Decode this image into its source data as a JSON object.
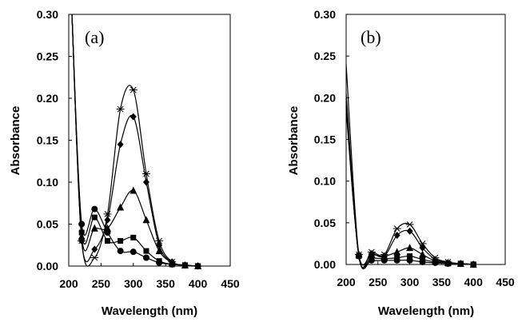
{
  "chart_data": [
    {
      "type": "line",
      "panel_label": "(a)",
      "xlabel": "Wavelength (nm)",
      "ylabel": "Absorbance",
      "xlim": [
        200,
        450
      ],
      "ylim": [
        0,
        0.3
      ],
      "xticks": [
        "200",
        "250",
        "300",
        "350",
        "400",
        "450"
      ],
      "yticks": [
        "0.00",
        "0.05",
        "0.10",
        "0.15",
        "0.20",
        "0.25",
        "0.30"
      ],
      "grid": false,
      "series": [
        {
          "marker": "circle",
          "x": [
            205,
            220,
            240,
            260,
            280,
            300,
            320,
            340,
            360,
            380,
            400
          ],
          "y": [
            0.3,
            0.05,
            0.068,
            0.04,
            0.018,
            0.017,
            0.01,
            0.004,
            0.002,
            0.001,
            0.0
          ]
        },
        {
          "marker": "square",
          "x": [
            205,
            220,
            240,
            260,
            280,
            300,
            320,
            340,
            360,
            380,
            400
          ],
          "y": [
            0.3,
            0.04,
            0.058,
            0.03,
            0.03,
            0.034,
            0.018,
            0.006,
            0.002,
            0.001,
            0.0
          ]
        },
        {
          "marker": "triangle",
          "x": [
            205,
            220,
            240,
            260,
            280,
            300,
            320,
            340,
            360,
            380,
            400
          ],
          "y": [
            0.3,
            0.035,
            0.045,
            0.045,
            0.07,
            0.09,
            0.055,
            0.018,
            0.004,
            0.001,
            0.0
          ]
        },
        {
          "marker": "diamond",
          "x": [
            205,
            220,
            240,
            260,
            280,
            300,
            320,
            340,
            360,
            380,
            400
          ],
          "y": [
            0.3,
            0.03,
            0.02,
            0.055,
            0.145,
            0.178,
            0.1,
            0.025,
            0.005,
            0.001,
            0.0
          ]
        },
        {
          "marker": "star",
          "x": [
            205,
            220,
            240,
            260,
            280,
            300,
            320,
            340,
            360,
            380,
            400
          ],
          "y": [
            0.3,
            0.03,
            0.01,
            0.062,
            0.187,
            0.21,
            0.11,
            0.03,
            0.005,
            0.001,
            0.0
          ]
        }
      ]
    },
    {
      "type": "line",
      "panel_label": "(b)",
      "xlabel": "Wavelength (nm)",
      "ylabel": "Absorbance",
      "xlim": [
        200,
        450
      ],
      "ylim": [
        0,
        0.3
      ],
      "xticks": [
        "200",
        "250",
        "300",
        "350",
        "400",
        "450"
      ],
      "yticks": [
        "0.00",
        "0.05",
        "0.10",
        "0.15",
        "0.20",
        "0.25",
        "0.30"
      ],
      "grid": false,
      "series": [
        {
          "marker": "circle",
          "x": [
            200,
            220,
            240,
            260,
            280,
            300,
            320,
            340,
            360,
            380,
            400
          ],
          "y": [
            0.195,
            0.01,
            0.005,
            0.005,
            0.005,
            0.005,
            0.003,
            0.002,
            0.001,
            0.001,
            0.0
          ]
        },
        {
          "marker": "square",
          "x": [
            200,
            220,
            240,
            260,
            280,
            300,
            320,
            340,
            360,
            380,
            400
          ],
          "y": [
            0.19,
            0.01,
            0.008,
            0.007,
            0.008,
            0.01,
            0.006,
            0.003,
            0.001,
            0.001,
            0.0
          ]
        },
        {
          "marker": "triangle",
          "x": [
            200,
            220,
            240,
            260,
            280,
            300,
            320,
            340,
            360,
            380,
            400
          ],
          "y": [
            0.185,
            0.012,
            0.012,
            0.01,
            0.015,
            0.02,
            0.012,
            0.004,
            0.002,
            0.001,
            0.0
          ]
        },
        {
          "marker": "diamond",
          "x": [
            200,
            220,
            240,
            260,
            280,
            300,
            320,
            340,
            360,
            380,
            400
          ],
          "y": [
            0.205,
            0.01,
            0.013,
            0.01,
            0.035,
            0.04,
            0.02,
            0.006,
            0.002,
            0.001,
            0.0
          ]
        },
        {
          "marker": "star",
          "x": [
            200,
            220,
            240,
            260,
            280,
            300,
            320,
            340,
            360,
            380,
            400
          ],
          "y": [
            0.24,
            0.012,
            0.015,
            0.012,
            0.043,
            0.048,
            0.025,
            0.008,
            0.003,
            0.001,
            0.0
          ]
        }
      ]
    }
  ]
}
